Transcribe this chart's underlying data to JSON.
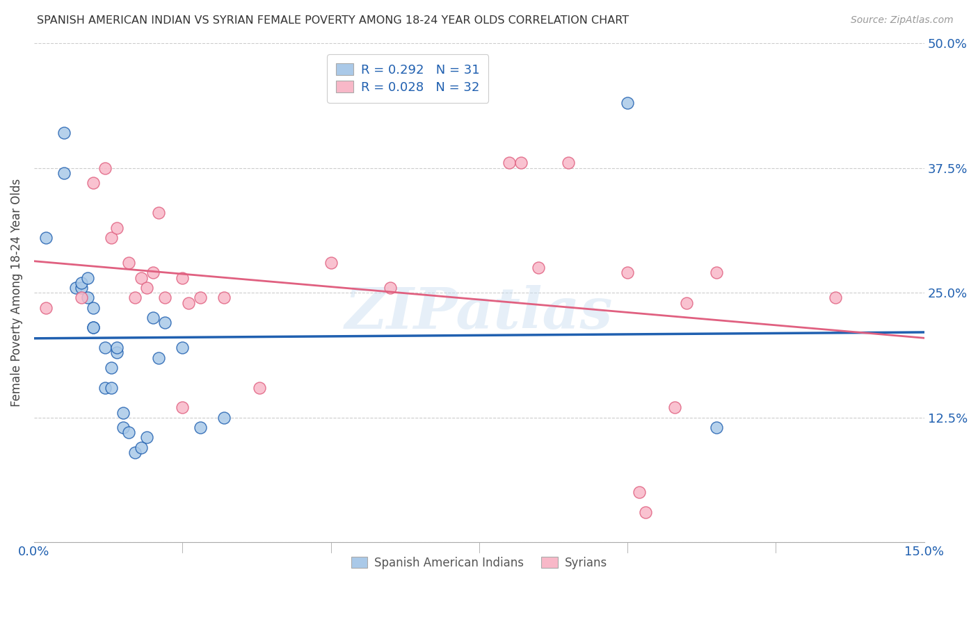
{
  "title": "SPANISH AMERICAN INDIAN VS SYRIAN FEMALE POVERTY AMONG 18-24 YEAR OLDS CORRELATION CHART",
  "source": "Source: ZipAtlas.com",
  "ylabel": "Female Poverty Among 18-24 Year Olds",
  "xmin": 0.0,
  "xmax": 0.15,
  "ymin": 0.0,
  "ymax": 0.5,
  "xticks": [
    0.0,
    0.025,
    0.05,
    0.075,
    0.1,
    0.125,
    0.15
  ],
  "xtick_labels": [
    "0.0%",
    "",
    "",
    "",
    "",
    "",
    "15.0%"
  ],
  "ytick_labels": [
    "",
    "12.5%",
    "25.0%",
    "37.5%",
    "50.0%"
  ],
  "yticks": [
    0.0,
    0.125,
    0.25,
    0.375,
    0.5
  ],
  "blue_label": "Spanish American Indians",
  "pink_label": "Syrians",
  "blue_R": "0.292",
  "blue_N": "31",
  "pink_R": "0.028",
  "pink_N": "32",
  "blue_color": "#aac9e8",
  "pink_color": "#f8b8c8",
  "blue_line_color": "#2060b0",
  "pink_line_color": "#e06080",
  "watermark": "ZIPatlas",
  "blue_x": [
    0.002,
    0.005,
    0.005,
    0.007,
    0.008,
    0.008,
    0.009,
    0.009,
    0.01,
    0.01,
    0.01,
    0.012,
    0.012,
    0.013,
    0.013,
    0.014,
    0.014,
    0.015,
    0.015,
    0.016,
    0.017,
    0.018,
    0.019,
    0.02,
    0.021,
    0.022,
    0.025,
    0.028,
    0.032,
    0.1,
    0.115
  ],
  "blue_y": [
    0.305,
    0.41,
    0.37,
    0.255,
    0.255,
    0.26,
    0.245,
    0.265,
    0.235,
    0.215,
    0.215,
    0.195,
    0.155,
    0.155,
    0.175,
    0.19,
    0.195,
    0.13,
    0.115,
    0.11,
    0.09,
    0.095,
    0.105,
    0.225,
    0.185,
    0.22,
    0.195,
    0.115,
    0.125,
    0.44,
    0.115
  ],
  "pink_x": [
    0.002,
    0.008,
    0.01,
    0.012,
    0.013,
    0.014,
    0.016,
    0.017,
    0.018,
    0.019,
    0.02,
    0.021,
    0.022,
    0.025,
    0.025,
    0.026,
    0.028,
    0.032,
    0.038,
    0.05,
    0.06,
    0.08,
    0.082,
    0.085,
    0.09,
    0.1,
    0.102,
    0.103,
    0.108,
    0.11,
    0.115,
    0.135
  ],
  "pink_y": [
    0.235,
    0.245,
    0.36,
    0.375,
    0.305,
    0.315,
    0.28,
    0.245,
    0.265,
    0.255,
    0.27,
    0.33,
    0.245,
    0.265,
    0.135,
    0.24,
    0.245,
    0.245,
    0.155,
    0.28,
    0.255,
    0.38,
    0.38,
    0.275,
    0.38,
    0.27,
    0.05,
    0.03,
    0.135,
    0.24,
    0.27,
    0.245
  ]
}
